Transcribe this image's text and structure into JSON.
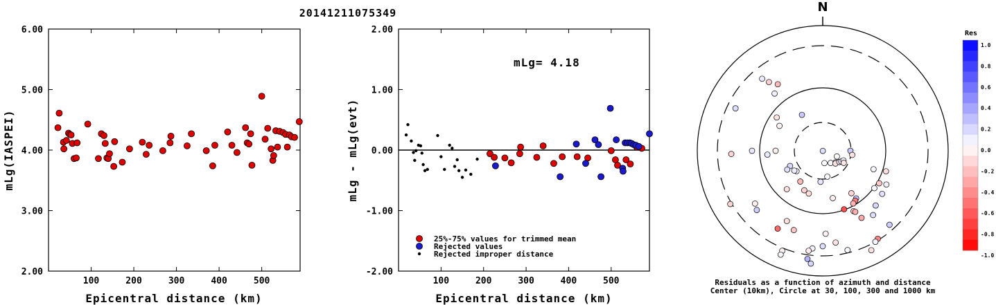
{
  "title": "20141211075349",
  "chart_data": [
    {
      "type": "scatter",
      "ylabel": "mLg(IASPEI)",
      "xlabel": "Epicentral distance (km)",
      "xlim": [
        0,
        590
      ],
      "ylim": [
        2.0,
        6.0
      ],
      "yticks": [
        "2.00",
        "3.00",
        "4.00",
        "5.00",
        "6.00"
      ],
      "xticks": [
        "100",
        "200",
        "300",
        "400",
        "500"
      ],
      "points": [
        [
          22,
          4.37
        ],
        [
          25,
          4.61
        ],
        [
          35,
          4.13
        ],
        [
          36,
          4.02
        ],
        [
          42,
          4.16
        ],
        [
          47,
          4.28
        ],
        [
          50,
          4.26
        ],
        [
          53,
          4.25
        ],
        [
          56,
          4.11
        ],
        [
          60,
          3.86
        ],
        [
          65,
          3.87
        ],
        [
          67,
          4.12
        ],
        [
          92,
          4.43
        ],
        [
          117,
          3.86
        ],
        [
          124,
          4.27
        ],
        [
          130,
          4.24
        ],
        [
          133,
          4.11
        ],
        [
          137,
          3.87
        ],
        [
          140,
          3.86
        ],
        [
          143,
          3.94
        ],
        [
          153,
          3.73
        ],
        [
          155,
          4.14
        ],
        [
          173,
          3.8
        ],
        [
          190,
          4.02
        ],
        [
          220,
          4.13
        ],
        [
          229,
          3.93
        ],
        [
          236,
          4.08
        ],
        [
          268,
          3.99
        ],
        [
          285,
          4.12
        ],
        [
          287,
          4.23
        ],
        [
          325,
          4.07
        ],
        [
          335,
          4.27
        ],
        [
          370,
          3.99
        ],
        [
          385,
          3.74
        ],
        [
          390,
          4.08
        ],
        [
          420,
          4.3
        ],
        [
          430,
          4.08
        ],
        [
          442,
          3.96
        ],
        [
          462,
          4.37
        ],
        [
          466,
          4.12
        ],
        [
          470,
          4.1
        ],
        [
          474,
          4.27
        ],
        [
          477,
          3.75
        ],
        [
          500,
          4.89
        ],
        [
          508,
          4.18
        ],
        [
          514,
          4.36
        ],
        [
          522,
          4.02
        ],
        [
          526,
          3.83
        ],
        [
          528,
          3.91
        ],
        [
          533,
          4.32
        ],
        [
          537,
          4.05
        ],
        [
          542,
          4.31
        ],
        [
          550,
          4.29
        ],
        [
          556,
          4.26
        ],
        [
          560,
          4.05
        ],
        [
          565,
          4.25
        ],
        [
          570,
          4.22
        ],
        [
          577,
          4.21
        ],
        [
          588,
          4.47
        ]
      ]
    },
    {
      "type": "scatter",
      "ylabel": "mLg - mLg(evt)",
      "xlabel": "Epicentral distance (km)",
      "annotation": "mLg= 4.18",
      "xlim": [
        0,
        590
      ],
      "ylim": [
        -2.0,
        2.0
      ],
      "yticks": [
        "-2.00",
        "-1.00",
        "0.00",
        "1.00",
        "2.00"
      ],
      "xticks": [
        "100",
        "200",
        "300",
        "400",
        "500"
      ],
      "legend": [
        {
          "label": "25%-75% values for trimmed mean",
          "color": "#dd0000"
        },
        {
          "label": "Rejected values",
          "color": "#1a1acc"
        },
        {
          "label": "Rejected improper distance",
          "color": "#000000"
        }
      ],
      "series": [
        {
          "name": "25%-75% values for trimmed mean",
          "color": "#dd0000",
          "points": [
            [
              215,
              -0.06
            ],
            [
              225,
              -0.12
            ],
            [
              250,
              -0.13
            ],
            [
              265,
              -0.21
            ],
            [
              285,
              -0.06
            ],
            [
              287,
              0.05
            ],
            [
              325,
              -0.12
            ],
            [
              340,
              0.07
            ],
            [
              365,
              -0.22
            ],
            [
              385,
              -0.11
            ],
            [
              420,
              -0.11
            ],
            [
              445,
              -0.13
            ],
            [
              500,
              -0.01
            ],
            [
              510,
              -0.16
            ],
            [
              515,
              -0.25
            ],
            [
              535,
              -0.16
            ],
            [
              545,
              -0.23
            ],
            [
              560,
              0.05
            ],
            [
              572,
              0.03
            ]
          ]
        },
        {
          "name": "Rejected values",
          "color": "#1a1acc",
          "points": [
            [
              228,
              -0.26
            ],
            [
              380,
              -0.44
            ],
            [
              418,
              0.1
            ],
            [
              440,
              -0.22
            ],
            [
              462,
              0.17
            ],
            [
              470,
              0.09
            ],
            [
              476,
              -0.44
            ],
            [
              498,
              0.69
            ],
            [
              512,
              0.17
            ],
            [
              527,
              -0.3
            ],
            [
              528,
              -0.35
            ],
            [
              533,
              0.12
            ],
            [
              538,
              0.12
            ],
            [
              544,
              0.12
            ],
            [
              548,
              0.11
            ],
            [
              553,
              0.09
            ],
            [
              558,
              0.08
            ],
            [
              565,
              0.06
            ],
            [
              590,
              0.27
            ]
          ]
        },
        {
          "name": "Rejected improper distance",
          "color": "#000000",
          "points": [
            [
              18,
              0.25
            ],
            [
              22,
              0.42
            ],
            [
              30,
              0.15
            ],
            [
              35,
              -0.04
            ],
            [
              38,
              -0.17
            ],
            [
              41,
              -0.01
            ],
            [
              47,
              0.08
            ],
            [
              52,
              0.07
            ],
            [
              55,
              -0.05
            ],
            [
              58,
              -0.24
            ],
            [
              62,
              -0.34
            ],
            [
              68,
              -0.32
            ],
            [
              92,
              0.24
            ],
            [
              100,
              -0.11
            ],
            [
              108,
              -0.32
            ],
            [
              120,
              0.08
            ],
            [
              126,
              0.03
            ],
            [
              132,
              -0.27
            ],
            [
              138,
              -0.16
            ],
            [
              142,
              -0.34
            ],
            [
              150,
              -0.45
            ],
            [
              158,
              -0.33
            ],
            [
              170,
              -0.4
            ],
            [
              185,
              -0.15
            ]
          ]
        }
      ]
    },
    {
      "type": "polar-scatter",
      "north_label": "N",
      "caption_line1": "Residuals as a function of azimuth and distance",
      "caption_line2": "Center (10km), Circle at 30, 100, 300 and 1000 km",
      "colorbar": {
        "title": "Res",
        "ticks": [
          "1.0",
          "0.8",
          "0.6",
          "0.4",
          "0.2",
          "0.0",
          "-0.2",
          "-0.4",
          "-0.6",
          "-0.8",
          "-1.0"
        ]
      },
      "points": [
        [
          0.2,
          142,
          0.13
        ],
        [
          18,
          172,
          0.01
        ],
        [
          21,
          147,
          0.02
        ],
        [
          22,
          112,
          -0.01
        ],
        [
          25,
          132,
          0.05
        ],
        [
          26,
          135,
          -0.12
        ],
        [
          29,
          124,
          -0.09
        ],
        [
          31,
          120,
          0.09
        ],
        [
          33,
          115,
          0.03
        ],
        [
          35,
          120,
          -0.1
        ],
        [
          38,
          170,
          0.03
        ],
        [
          40,
          90,
          0.21
        ],
        [
          43,
          98,
          -0.11
        ],
        [
          45,
          184,
          0.1
        ],
        [
          48,
          232,
          0.05
        ],
        [
          50,
          235,
          0.07
        ],
        [
          52,
          245,
          0.15
        ],
        [
          55,
          216,
          -0.28
        ],
        [
          58,
          242,
          0.12
        ],
        [
          60,
          330,
          0.21
        ],
        [
          63,
          205,
          -0.17
        ],
        [
          65,
          198,
          -0.13
        ],
        [
          68,
          270,
          -0.06
        ],
        [
          70,
          168,
          -0.06
        ],
        [
          72,
          300,
          -0.04
        ],
        [
          74,
          146,
          -0.17
        ],
        [
          76,
          223,
          -0.12
        ],
        [
          78,
          110,
          0.03
        ],
        [
          80,
          266,
          0.09
        ],
        [
          82,
          306,
          -0.11
        ],
        [
          84,
          145,
          0.25
        ],
        [
          86,
          147,
          -0.5
        ],
        [
          88,
          150,
          -0.3
        ],
        [
          90,
          160,
          -0.7
        ],
        [
          92,
          126,
          0.03
        ],
        [
          94,
          120,
          -0.22
        ],
        [
          96,
          108,
          -0.13
        ],
        [
          98,
          153,
          -0.21
        ],
        [
          100,
          152,
          -0.31
        ],
        [
          102,
          270,
          0.09
        ],
        [
          104,
          118,
          0.05
        ],
        [
          106,
          126,
          0.11
        ],
        [
          108,
          320,
          0.06
        ],
        [
          110,
          136,
          0.16
        ],
        [
          112,
          150,
          -0.33
        ],
        [
          114,
          207,
          -0.12
        ],
        [
          116,
          326,
          -0.27
        ],
        [
          118,
          142,
          0.13
        ],
        [
          120,
          178,
          -0.05
        ],
        [
          122,
          200,
          -0.22
        ],
        [
          124,
          232,
          -0.06
        ],
        [
          126,
          322,
          -0.18
        ],
        [
          128,
          228,
          0.19
        ],
        [
          130,
          210,
          -0.58
        ],
        [
          132,
          268,
          -0.16
        ],
        [
          134,
          172,
          -0.11
        ],
        [
          136,
          320,
          0.08
        ],
        [
          138,
          180,
          0.13
        ],
        [
          140,
          296,
          0.13
        ],
        [
          142,
          186,
          0.05
        ],
        [
          144,
          138,
          0.2
        ],
        [
          146,
          188,
          -0.07
        ],
        [
          148,
          166,
          0.03
        ],
        [
          150,
          148,
          -0.47
        ],
        [
          152,
          150,
          0.04
        ],
        [
          154,
          240,
          -0.17
        ],
        [
          156,
          202,
          -0.05
        ],
        [
          158,
          188,
          0.3
        ],
        [
          160,
          154,
          -0.11
        ],
        [
          162,
          202,
          0.04
        ],
        [
          164,
          186,
          0.16
        ]
      ]
    }
  ]
}
